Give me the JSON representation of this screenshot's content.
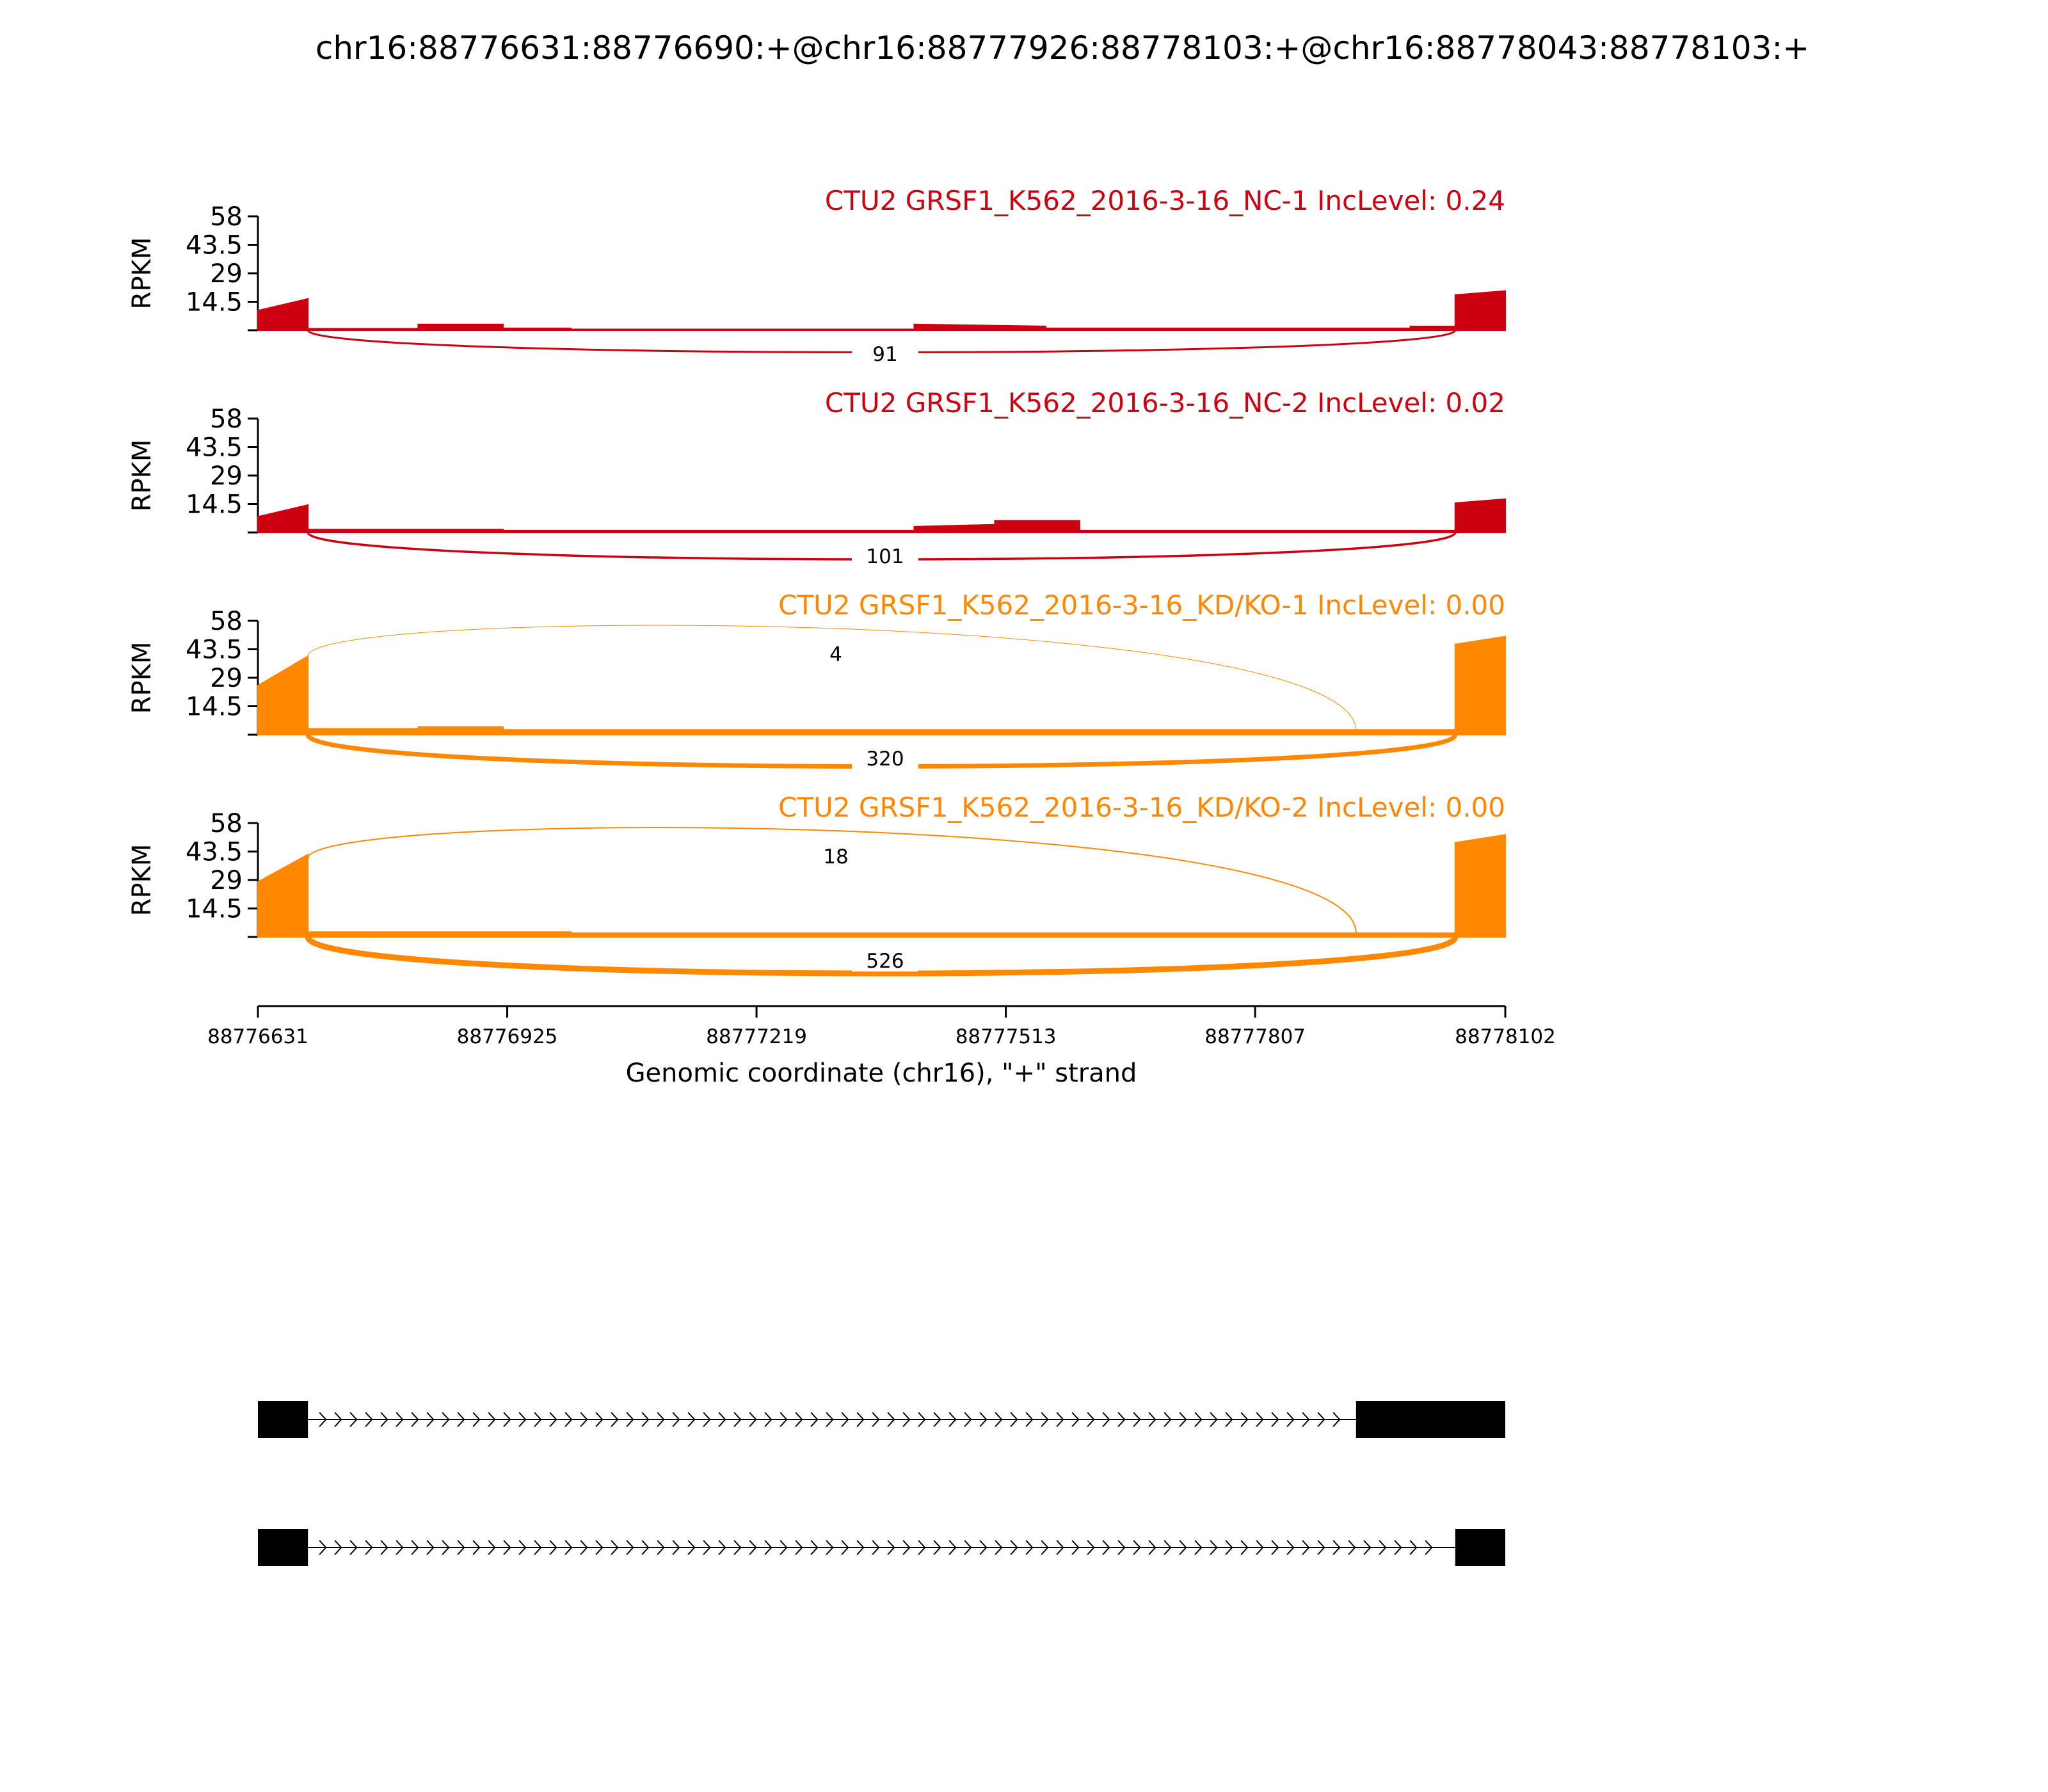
{
  "chart_data": {
    "type": "sashimi",
    "title": "chr16:88776631:88776690:+@chr16:88777926:88778103:+@chr16:88778043:88778103:+",
    "xlabel": "Genomic coordinate (chr16), \"+\" strand",
    "ylabel": "RPKM",
    "xlim": [
      88776631,
      88778102
    ],
    "x_ticks": [
      "88776631",
      "88776925",
      "88777219",
      "88777513",
      "88777807",
      "88778102"
    ],
    "ylim": [
      0,
      58
    ],
    "y_ticks": [
      "58",
      "43.5",
      "29",
      "14.5"
    ],
    "colors": {
      "nc": "#cc0011",
      "kd": "#ff8800"
    },
    "tracks": [
      {
        "label": "CTU2 GRSF1_K562_2016-3-16_NC-1 IncLevel: 0.24",
        "color": "#cc0011",
        "coverage": [
          [
            88776631,
            88776690,
            10,
            16
          ],
          [
            88776690,
            88776820,
            0.8,
            0.8
          ],
          [
            88776820,
            88776920,
            3,
            3
          ],
          [
            88776920,
            88777000,
            1,
            1
          ],
          [
            88777000,
            88777405,
            0.5,
            0.5
          ],
          [
            88777405,
            88777560,
            3,
            2
          ],
          [
            88777560,
            88777990,
            1,
            1
          ],
          [
            88777990,
            88778043,
            2,
            2
          ],
          [
            88778043,
            88778102,
            18,
            20
          ]
        ],
        "junctions": [
          {
            "from": 88776690,
            "to": 88778043,
            "count": "91",
            "side": "below",
            "width": 3
          }
        ]
      },
      {
        "label": "CTU2 GRSF1_K562_2016-3-16_NC-2 IncLevel: 0.02",
        "color": "#cc0011",
        "coverage": [
          [
            88776631,
            88776690,
            8,
            14
          ],
          [
            88776690,
            88776920,
            1.5,
            1.5
          ],
          [
            88776920,
            88777405,
            1,
            1
          ],
          [
            88777405,
            88777500,
            3,
            4
          ],
          [
            88777500,
            88777600,
            6,
            6
          ],
          [
            88777600,
            88778043,
            1,
            1
          ],
          [
            88778043,
            88778102,
            15,
            17
          ]
        ],
        "junctions": [
          {
            "from": 88776690,
            "to": 88778043,
            "count": "101",
            "side": "below",
            "width": 3.5
          }
        ]
      },
      {
        "label": "CTU2 GRSF1_K562_2016-3-16_KD/KO-1 IncLevel: 0.00",
        "color": "#ff8800",
        "coverage": [
          [
            88776631,
            88776690,
            25,
            40
          ],
          [
            88776690,
            88776820,
            3,
            3
          ],
          [
            88776820,
            88776920,
            4,
            4
          ],
          [
            88776920,
            88778043,
            2.5,
            2.5
          ],
          [
            88778043,
            88778102,
            46,
            50
          ]
        ],
        "junctions": [
          {
            "from": 88776690,
            "to": 88777926,
            "count": "4",
            "side": "above",
            "width": 1
          },
          {
            "from": 88776690,
            "to": 88778043,
            "count": "320",
            "side": "below",
            "width": 7
          }
        ]
      },
      {
        "label": "CTU2 GRSF1_K562_2016-3-16_KD/KO-2 IncLevel: 0.00",
        "color": "#ff8800",
        "coverage": [
          [
            88776631,
            88776690,
            28,
            42
          ],
          [
            88776690,
            88777000,
            2.5,
            2.5
          ],
          [
            88777000,
            88778043,
            2,
            2
          ],
          [
            88778043,
            88778102,
            48,
            52
          ]
        ],
        "junctions": [
          {
            "from": 88776690,
            "to": 88777926,
            "count": "18",
            "side": "above",
            "width": 2
          },
          {
            "from": 88776690,
            "to": 88778043,
            "count": "526",
            "side": "below",
            "width": 9
          }
        ]
      }
    ],
    "isoforms": [
      {
        "exons": [
          [
            88776631,
            88776690
          ],
          [
            88777926,
            88778102
          ]
        ]
      },
      {
        "exons": [
          [
            88776631,
            88776690
          ],
          [
            88778043,
            88778102
          ]
        ]
      }
    ]
  }
}
